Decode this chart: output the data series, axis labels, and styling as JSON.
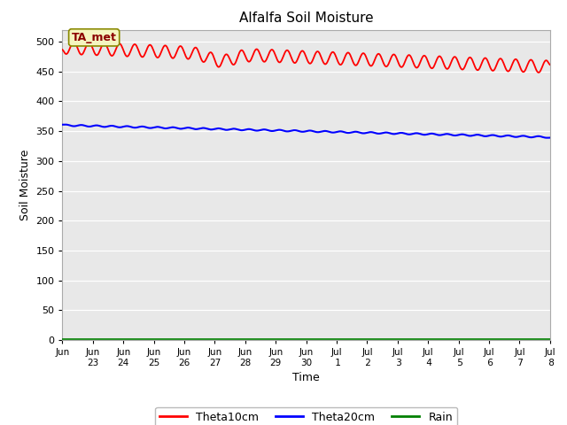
{
  "title": "Alfalfa Soil Moisture",
  "xlabel": "Time",
  "ylabel": "Soil Moisture",
  "ylim": [
    0,
    520
  ],
  "yticks": [
    0,
    50,
    100,
    150,
    200,
    250,
    300,
    350,
    400,
    450,
    500
  ],
  "bg_color": "#e8e8e8",
  "annotation_text": "TA_met",
  "legend_entries": [
    "Theta10cm",
    "Theta20cm",
    "Rain"
  ],
  "legend_colors": [
    "red",
    "blue",
    "green"
  ],
  "line_theta10_color": "red",
  "line_theta20_color": "blue",
  "line_rain_color": "green",
  "xtick_labels": [
    "Jun\n23",
    "Jun\n24",
    "Jun\n25",
    "Jun\n26",
    "Jun\n27",
    "Jun\n28",
    "Jun\n29",
    "Jun\n30",
    "Jul\n 1",
    "Jul\n 2",
    "Jul\n 3",
    "Jul\n 4",
    "Jul\n 5",
    "Jul\n 6",
    "Jul\n 7",
    "Jul\n 8"
  ],
  "num_days": 16
}
